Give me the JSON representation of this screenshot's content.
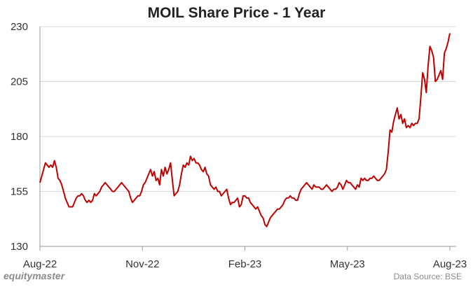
{
  "chart_data": {
    "type": "line",
    "title": "MOIL Share Price - 1 Year",
    "x_tick_labels": [
      "Aug-22",
      "Nov-22",
      "Feb-23",
      "May-23",
      "Aug-23"
    ],
    "y_ticks": [
      130,
      155,
      180,
      205,
      230
    ],
    "ylim": [
      130,
      230
    ],
    "grid": "horizontal",
    "line_color": "#c00000",
    "series": [
      {
        "values": [
          159,
          162,
          165,
          168,
          167,
          166,
          167,
          166,
          169,
          166,
          161,
          160,
          158,
          155,
          152,
          150,
          148,
          148,
          148,
          150,
          152,
          153,
          153,
          154,
          153,
          151,
          150,
          151,
          150,
          151,
          154,
          153,
          154,
          155,
          157,
          158,
          159,
          158,
          157,
          156,
          155,
          155,
          156,
          157,
          158,
          159,
          158,
          157,
          156,
          155,
          152,
          150,
          151,
          152,
          153,
          153,
          155,
          158,
          159,
          161,
          163,
          165,
          162,
          164,
          160,
          161,
          158,
          165,
          162,
          166,
          163,
          165,
          168,
          160,
          153,
          154,
          155,
          158,
          163,
          167,
          166,
          168,
          167,
          171,
          169,
          170,
          168,
          168,
          167,
          165,
          164,
          166,
          163,
          162,
          158,
          157,
          156,
          157,
          155,
          155,
          153,
          154,
          155,
          156,
          152,
          149,
          150,
          150,
          151,
          152,
          148,
          149,
          153,
          153,
          152,
          152,
          150,
          149,
          148,
          147,
          148,
          146,
          144,
          143,
          140,
          139,
          141,
          143,
          144,
          145,
          146,
          147,
          147,
          148,
          149,
          151,
          152,
          152,
          153,
          152,
          152,
          151,
          151,
          154,
          156,
          157,
          158,
          159,
          158,
          157,
          156,
          158,
          157,
          157,
          157,
          156,
          156,
          157,
          158,
          157,
          156,
          155,
          156,
          156,
          157,
          159,
          158,
          156,
          158,
          160,
          159,
          159,
          158,
          157,
          156,
          158,
          157,
          161,
          160,
          161,
          160,
          160,
          161,
          161,
          162,
          161,
          160,
          160,
          161,
          162,
          163,
          165,
          173,
          183,
          182,
          187,
          190,
          193,
          188,
          190,
          186,
          188,
          184,
          185,
          184,
          186,
          185,
          186,
          186,
          188,
          198,
          209,
          206,
          200,
          212,
          221,
          219,
          216,
          205,
          206,
          208,
          210,
          206,
          218,
          220,
          223,
          227
        ]
      }
    ],
    "brand": "equitymaster",
    "source": "Data Source: BSE"
  }
}
